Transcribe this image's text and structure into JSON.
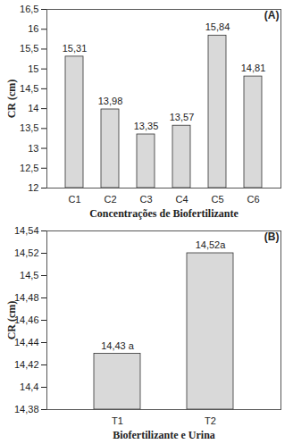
{
  "chart_data": [
    {
      "type": "bar",
      "annotation": "(A)",
      "x_label": "Concentrações de Biofertilizante",
      "y_label": "CR (cm)",
      "categories": [
        "C1",
        "C2",
        "C3",
        "C4",
        "C5",
        "C6"
      ],
      "values": [
        15.31,
        13.98,
        13.35,
        13.57,
        15.84,
        14.81
      ],
      "value_labels": [
        "15,31",
        "13,98",
        "13,35",
        "13,57",
        "15,84",
        "14,81"
      ],
      "data_labels": true,
      "color": "#d9d9d9",
      "grid": false,
      "ylim": [
        12,
        16.5
      ],
      "yticks": [
        12,
        {
          "value": 12.5,
          "label": "12,5"
        },
        13,
        {
          "value": 13.5,
          "label": "13,5"
        },
        14,
        {
          "value": 14.5,
          "label": "14,5"
        },
        15,
        {
          "value": 15.5,
          "label": "15,5"
        },
        16,
        {
          "value": 16.5,
          "label": "16,5"
        }
      ]
    },
    {
      "type": "bar",
      "annotation": "(B)",
      "x_label": "Biofertilizante e Urina",
      "y_label": "CR (cm)",
      "categories": [
        "T1",
        "T2"
      ],
      "values": [
        14.43,
        14.52
      ],
      "value_labels": [
        "14,43 a",
        "14,52a"
      ],
      "data_labels": true,
      "color": "#d9d9d9",
      "grid": false,
      "ylim": [
        14.38,
        14.54
      ],
      "yticks": [
        {
          "value": 14.38,
          "label": "14,38"
        },
        {
          "value": 14.4,
          "label": "14,4"
        },
        {
          "value": 14.42,
          "label": "14,42"
        },
        {
          "value": 14.44,
          "label": "14,44"
        },
        {
          "value": 14.46,
          "label": "14,46"
        },
        {
          "value": 14.48,
          "label": "14,48"
        },
        {
          "value": 14.5,
          "label": "14,5"
        },
        {
          "value": 14.52,
          "label": "14,52"
        },
        {
          "value": 14.54,
          "label": "14,54"
        }
      ]
    }
  ]
}
